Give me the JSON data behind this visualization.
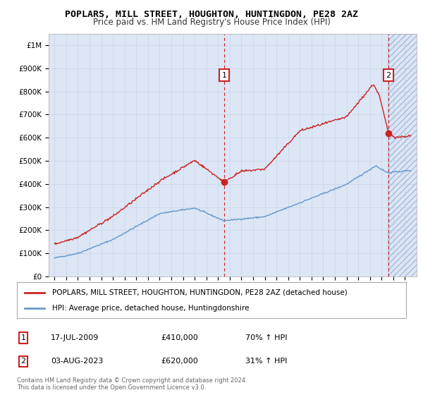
{
  "title": "POPLARS, MILL STREET, HOUGHTON, HUNTINGDON, PE28 2AZ",
  "subtitle": "Price paid vs. HM Land Registry's House Price Index (HPI)",
  "legend_line1": "POPLARS, MILL STREET, HOUGHTON, HUNTINGDON, PE28 2AZ (detached house)",
  "legend_line2": "HPI: Average price, detached house, Huntingdonshire",
  "annotation1_label": "1",
  "annotation1_date": "17-JUL-2009",
  "annotation1_price": 410000,
  "annotation1_hpi": "70% ↑ HPI",
  "annotation1_year": 2009.54,
  "annotation2_label": "2",
  "annotation2_date": "03-AUG-2023",
  "annotation2_price": 620000,
  "annotation2_hpi": "31% ↑ HPI",
  "annotation2_year": 2023.58,
  "copyright": "Contains HM Land Registry data © Crown copyright and database right 2024.\nThis data is licensed under the Open Government Licence v3.0.",
  "hpi_color": "#6699cc",
  "price_color": "#cc2222",
  "dashed_color": "#cc2222",
  "background_color": "#dce6f5",
  "plot_bg_color": "#ffffff",
  "ylim": [
    0,
    1050000
  ],
  "xlim_start": 1994.5,
  "xlim_end": 2026.0
}
